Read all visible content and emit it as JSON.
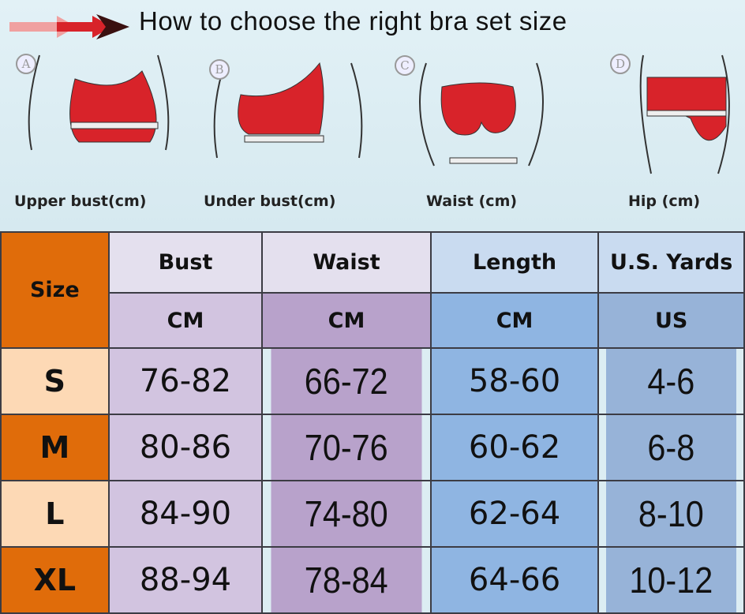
{
  "header": {
    "title": "How to choose the right bra set size"
  },
  "figures": [
    {
      "letter": "A",
      "label": "Upper bust(cm)"
    },
    {
      "letter": "B",
      "label": "Under bust(cm)"
    },
    {
      "letter": "C",
      "label": "Waist (cm)"
    },
    {
      "letter": "D",
      "label": "Hip (cm)"
    }
  ],
  "table": {
    "size_header": "Size",
    "columns": [
      {
        "name": "Bust",
        "unit": "CM"
      },
      {
        "name": "Waist",
        "unit": "CM"
      },
      {
        "name": "Length",
        "unit": "CM"
      },
      {
        "name": "U.S. Yards",
        "unit": "US"
      }
    ],
    "rows": [
      {
        "size": "S",
        "bust": "76-82",
        "waist": "66-72",
        "length": "58-60",
        "us": "4-6"
      },
      {
        "size": "M",
        "bust": "80-86",
        "waist": "70-76",
        "length": "60-62",
        "us": "6-8"
      },
      {
        "size": "L",
        "bust": "84-90",
        "waist": "74-80",
        "length": "62-64",
        "us": "8-10"
      },
      {
        "size": "XL",
        "bust": "88-94",
        "waist": "78-84",
        "length": "64-66",
        "us": "10-12"
      }
    ]
  },
  "colors": {
    "orange": "#e06c0a",
    "peach": "#fdd9b5",
    "garment_red": "#d8232a"
  }
}
